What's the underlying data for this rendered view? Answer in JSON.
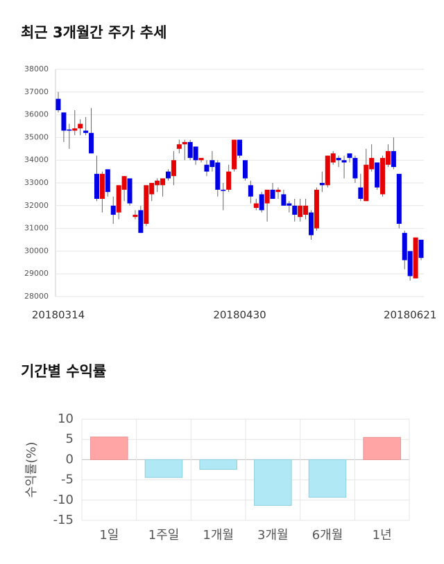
{
  "chart_data": [
    {
      "type": "candlestick",
      "title": "최근 3개월간 주가 추세",
      "categories": [
        "20180314",
        null,
        null,
        null,
        null,
        null,
        null,
        null,
        null,
        null,
        null,
        null,
        null,
        null,
        null,
        null,
        null,
        null,
        null,
        null,
        null,
        null,
        null,
        null,
        null,
        null,
        null,
        null,
        null,
        null,
        null,
        null,
        null,
        "20180430",
        null,
        null,
        null,
        null,
        null,
        null,
        null,
        null,
        null,
        null,
        null,
        null,
        null,
        null,
        null,
        null,
        null,
        null,
        null,
        null,
        null,
        null,
        null,
        null,
        null,
        null,
        null,
        null,
        null,
        null,
        "20180621",
        null,
        null
      ],
      "open": [
        36700,
        36100,
        35350,
        35300,
        35400,
        35300,
        35200,
        33400,
        32300,
        33600,
        32000,
        31700,
        32700,
        33200,
        31500,
        31800,
        31200,
        32500,
        32900,
        32900,
        33500,
        33300,
        34500,
        34700,
        34800,
        34600,
        34000,
        33800,
        34000,
        33900,
        32700,
        32700,
        33600,
        34900,
        34000,
        32900,
        31900,
        32500,
        32100,
        32700,
        32600,
        32500,
        32100,
        32000,
        31500,
        31600,
        31700,
        31000,
        33000,
        32900,
        33900,
        34100,
        34000,
        34300,
        34100,
        32800,
        32200,
        33600,
        33900,
        32500,
        33800,
        34400,
        33400,
        30800,
        30000,
        28800,
        30500
      ],
      "high": [
        37000,
        36100,
        35600,
        36200,
        35800,
        35900,
        36300,
        34200,
        33500,
        33600,
        32400,
        32900,
        33300,
        33200,
        31800,
        32000,
        32900,
        33000,
        33200,
        33200,
        33600,
        34400,
        34900,
        34900,
        34900,
        34600,
        34100,
        34000,
        34400,
        34000,
        33000,
        33800,
        34900,
        34900,
        34000,
        33100,
        32300,
        32600,
        32700,
        33000,
        32800,
        32700,
        32200,
        32300,
        32300,
        32300,
        31800,
        32800,
        33500,
        34200,
        34400,
        34200,
        34200,
        34300,
        34200,
        33400,
        34500,
        34700,
        33900,
        34200,
        34700,
        35000,
        33400,
        30900,
        30000,
        30600,
        30500
      ],
      "low": [
        36100,
        34800,
        34500,
        35100,
        35100,
        35100,
        34300,
        32200,
        31700,
        32400,
        31200,
        31400,
        32200,
        32000,
        31400,
        30800,
        31100,
        32200,
        32600,
        32400,
        33100,
        32900,
        34300,
        34000,
        34000,
        33800,
        33900,
        33300,
        33500,
        32400,
        31800,
        32600,
        33500,
        34100,
        33100,
        32100,
        31800,
        31700,
        31300,
        32300,
        32300,
        32000,
        31700,
        31300,
        31300,
        31400,
        30500,
        30900,
        32600,
        32800,
        33800,
        33700,
        33200,
        33900,
        33000,
        32200,
        32200,
        33500,
        32700,
        32400,
        33700,
        33600,
        31000,
        29200,
        28700,
        28800,
        29600
      ],
      "close": [
        36200,
        35300,
        35300,
        35400,
        35600,
        35200,
        34300,
        32300,
        33400,
        32600,
        31600,
        32900,
        33300,
        32100,
        31600,
        30800,
        32900,
        33000,
        33100,
        33200,
        33200,
        34000,
        34700,
        34800,
        34100,
        34000,
        34100,
        33500,
        33700,
        32700,
        32650,
        33500,
        34900,
        34200,
        33200,
        32400,
        32100,
        31800,
        32700,
        32300,
        32700,
        32000,
        32000,
        31600,
        32000,
        32000,
        30700,
        32700,
        32900,
        34200,
        34300,
        34000,
        33900,
        34100,
        33200,
        32300,
        33800,
        34100,
        32800,
        34100,
        34400,
        33700,
        31200,
        29600,
        28900,
        30600,
        29700
      ],
      "up_color": "#e60000",
      "down_color": "#0000e6",
      "grid": true,
      "ylim": [
        28000,
        38000
      ],
      "yticks": [
        28000,
        29000,
        30000,
        31000,
        32000,
        33000,
        34000,
        35000,
        36000,
        37000,
        38000
      ]
    },
    {
      "type": "bar",
      "title": "기간별 수익률",
      "ylabel": "수익률(%)",
      "categories": [
        "1일",
        "1주일",
        "1개월",
        "3개월",
        "6개월",
        "1년"
      ],
      "values": [
        5.6,
        -4.4,
        -2.4,
        -11.3,
        -9.3,
        5.5
      ],
      "positive_color": "#ffa5a5",
      "negative_color": "#b0e9f5",
      "grid": true,
      "ylim": [
        -15,
        10
      ],
      "yticks": [
        -15,
        -10,
        -5,
        0,
        5,
        10
      ]
    }
  ]
}
